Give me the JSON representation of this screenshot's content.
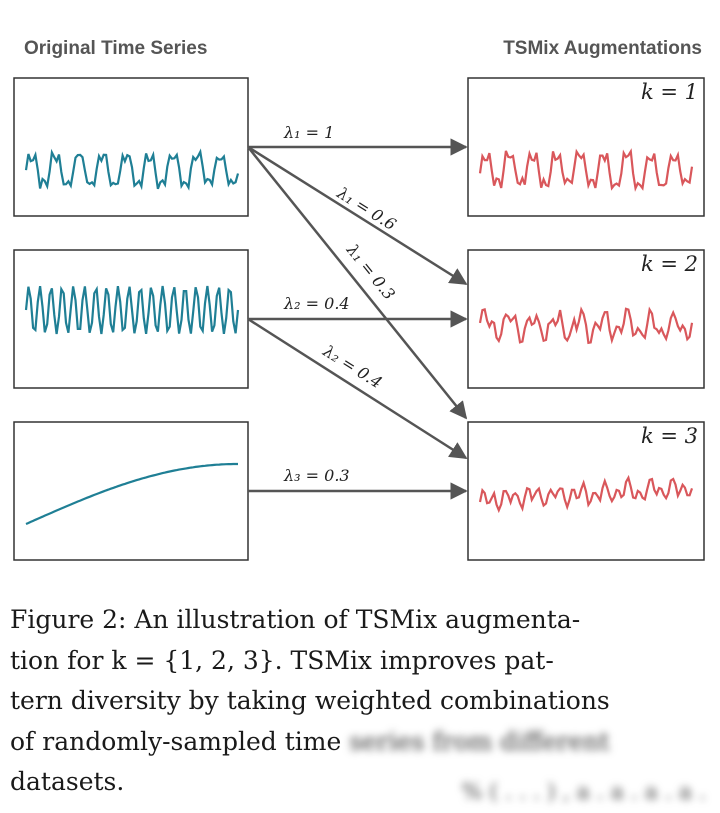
{
  "figure": {
    "left_title": "Original Time Series",
    "right_title": "TSMix Augmentations",
    "k_labels": [
      "k = 1",
      "k = 2",
      "k = 3"
    ],
    "edges": [
      {
        "from": 1,
        "to": 1,
        "label": "λ₁ = 1"
      },
      {
        "from": 1,
        "to": 2,
        "label": "λ₁ = 0.6"
      },
      {
        "from": 1,
        "to": 3,
        "label": "λ₁ = 0.3"
      },
      {
        "from": 2,
        "to": 2,
        "label": "λ₂ = 0.4"
      },
      {
        "from": 2,
        "to": 3,
        "label": "λ₂ = 0.4"
      },
      {
        "from": 3,
        "to": 3,
        "label": "λ₃ = 0.3"
      }
    ],
    "colors": {
      "original": "#1f7f95",
      "augmented": "#d9575b",
      "arrow": "#555555"
    }
  },
  "caption": {
    "line1": "Figure 2:  An illustration of TSMix augmenta-",
    "line2": "tion for k = {1, 2, 3}.  TSMix improves pat-",
    "line3": "tern diversity by taking weighted combinations",
    "line4_visible": "of randomly-sampled time",
    "line4_blurred": "series from different",
    "line5": "datasets.",
    "line5_blurred": "% ( . . . ) , a . a . a . a ."
  }
}
